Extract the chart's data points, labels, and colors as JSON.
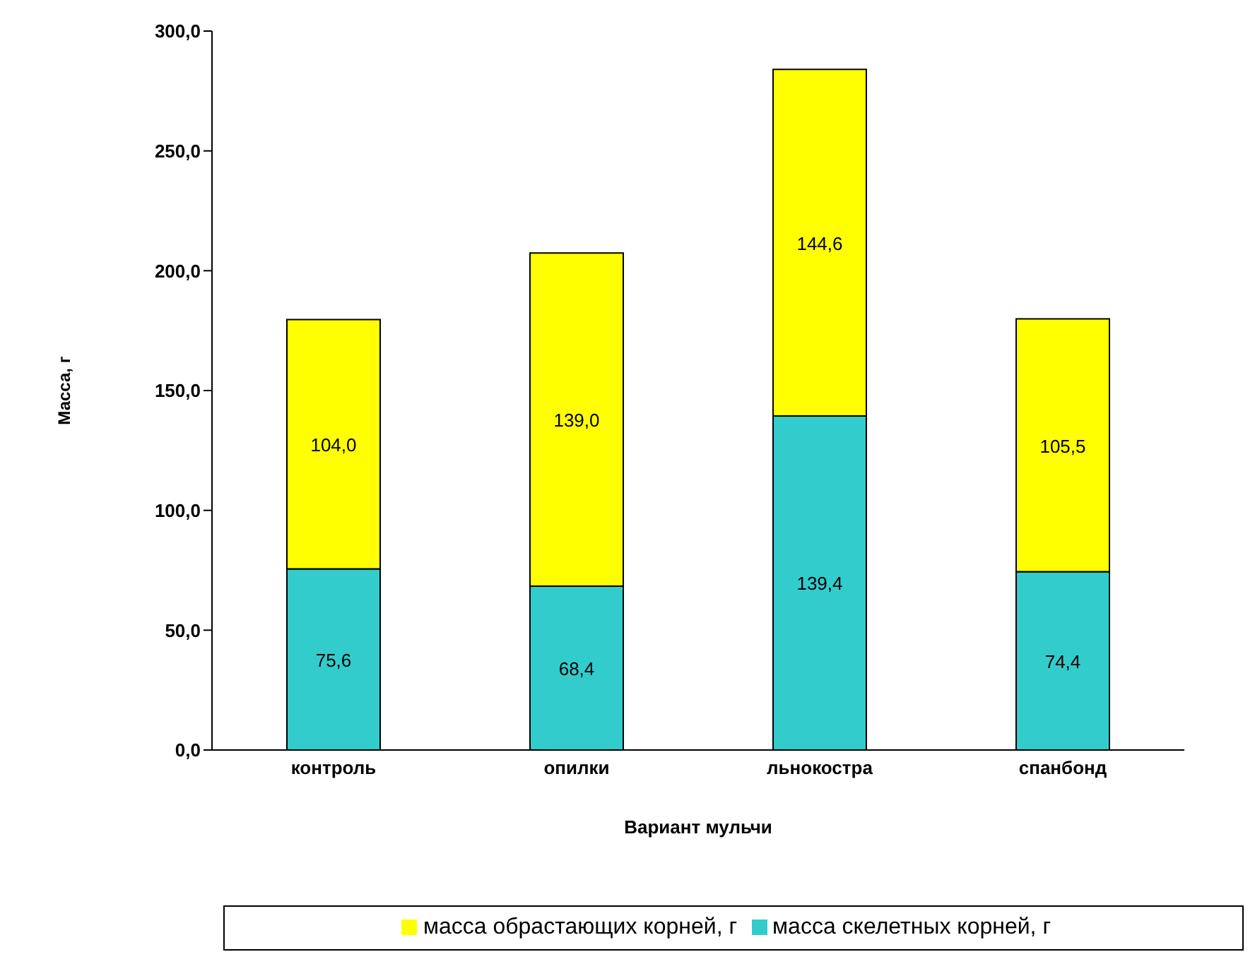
{
  "chart_data": {
    "type": "bar",
    "stacked": true,
    "xlabel": "Вариант мульчи",
    "ylabel": "Масса, г",
    "categories": [
      "контроль",
      "опилки",
      "льнокостра",
      "спанбонд"
    ],
    "series": [
      {
        "name": "масса скелетных корней, г",
        "color": "#33cccc",
        "values": [
          75.6,
          68.4,
          139.4,
          74.4
        ],
        "value_labels": [
          "75,6",
          "68,4",
          "139,4",
          "74,4"
        ]
      },
      {
        "name": "масса обрастающих корней, г",
        "color": "#ffff00",
        "values": [
          104.0,
          139.0,
          144.6,
          105.5
        ],
        "value_labels": [
          "104,0",
          "139,0",
          "144,6",
          "105,5"
        ]
      }
    ],
    "ylim": [
      0,
      300
    ],
    "yticks": [
      {
        "value": 0,
        "label": "0,0"
      },
      {
        "value": 50,
        "label": "50,0"
      },
      {
        "value": 100,
        "label": "100,0"
      },
      {
        "value": 150,
        "label": "150,0"
      },
      {
        "value": 200,
        "label": "200,0"
      },
      {
        "value": 250,
        "label": "250,0"
      },
      {
        "value": 300,
        "label": "300,0"
      }
    ],
    "grid": false,
    "legend": "bottom"
  }
}
